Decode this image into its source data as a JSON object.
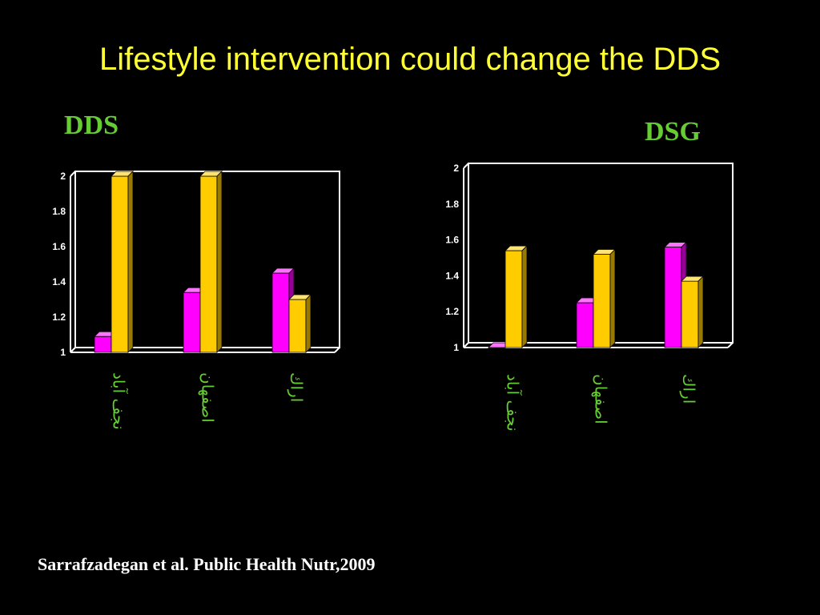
{
  "slide": {
    "title": "Lifestyle intervention could change the DDS",
    "citation": "Sarrafzadegan et al. Public Health Nutr,2009"
  },
  "colors": {
    "background": "#000000",
    "title": "#ffff33",
    "chart_title": "#66cc33",
    "category_label": "#66cc33",
    "series_1": "#ff00ff",
    "series_2": "#ffcc00"
  },
  "chart_data": [
    {
      "type": "bar",
      "title": "DDS",
      "categories": [
        "نجف آباد",
        "اصفهان",
        "اراك"
      ],
      "series": [
        {
          "values": [
            1.09,
            1.34,
            1.45
          ]
        },
        {
          "values": [
            2.0,
            2.0,
            1.3
          ]
        }
      ],
      "ylim": [
        1,
        2
      ],
      "yticks": [
        "1",
        "1.2",
        "1.4",
        "1.6",
        "1.8",
        "2"
      ],
      "grid": false,
      "legend": false,
      "style": "3d"
    },
    {
      "type": "bar",
      "title": "DSG",
      "categories": [
        "نجف آباد",
        "اصفهان",
        "اراك"
      ],
      "series": [
        {
          "values": [
            1.0,
            1.25,
            1.56
          ]
        },
        {
          "values": [
            1.54,
            1.52,
            1.37
          ]
        }
      ],
      "ylim": [
        1,
        2
      ],
      "yticks": [
        "1",
        "1.2",
        "1.4",
        "1.6",
        "1.8",
        "2"
      ],
      "grid": false,
      "legend": false,
      "style": "3d"
    }
  ]
}
